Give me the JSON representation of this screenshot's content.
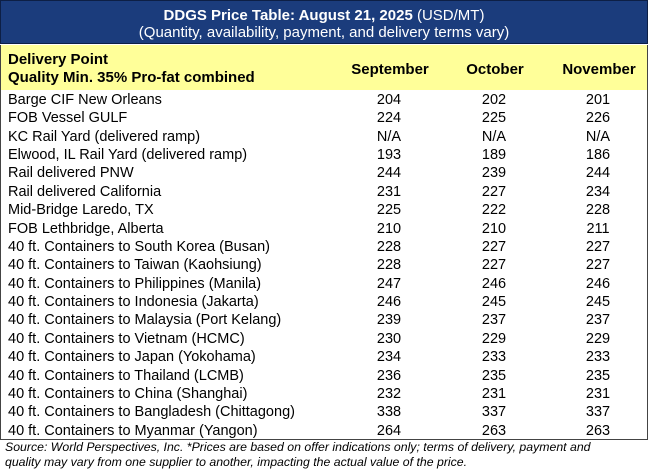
{
  "header": {
    "title": "DDGS Price Table: August 21, 2025",
    "unit": "(USD/MT)",
    "subtitle": "(Quantity, availability, payment, and delivery terms vary)"
  },
  "table": {
    "row_header": [
      "Delivery Point",
      "Quality Min. 35% Pro-fat combined"
    ],
    "columns": [
      "September",
      "October",
      "November"
    ],
    "rows": [
      [
        "Barge CIF New Orleans",
        204,
        202,
        201
      ],
      [
        "FOB Vessel GULF",
        224,
        225,
        226
      ],
      [
        "KC Rail Yard (delivered ramp)",
        "N/A",
        "N/A",
        "N/A"
      ],
      [
        "Elwood, IL Rail Yard (delivered ramp)",
        193,
        189,
        186
      ],
      [
        "Rail delivered PNW",
        244,
        239,
        244
      ],
      [
        "Rail delivered California",
        231,
        227,
        234
      ],
      [
        "Mid-Bridge Laredo, TX",
        225,
        222,
        228
      ],
      [
        "FOB Lethbridge, Alberta",
        210,
        210,
        211
      ],
      [
        "40 ft. Containers to South Korea (Busan)",
        228,
        227,
        227
      ],
      [
        "40 ft. Containers to Taiwan (Kaohsiung)",
        228,
        227,
        227
      ],
      [
        "40 ft. Containers to Philippines (Manila)",
        247,
        246,
        246
      ],
      [
        "40 ft. Containers to Indonesia (Jakarta)",
        246,
        245,
        245
      ],
      [
        "40 ft. Containers to Malaysia (Port Kelang)",
        239,
        237,
        237
      ],
      [
        "40 ft. Containers to Vietnam (HCMC)",
        230,
        229,
        229
      ],
      [
        "40 ft. Containers to Japan (Yokohama)",
        234,
        233,
        233
      ],
      [
        "40 ft. Containers to Thailand (LCMB)",
        236,
        235,
        235
      ],
      [
        "40 ft. Containers to China (Shanghai)",
        232,
        231,
        231
      ],
      [
        "40 ft. Containers to Bangladesh (Chittagong)",
        338,
        337,
        337
      ],
      [
        "40 ft. Containers to Myanmar (Yangon)",
        264,
        263,
        263
      ]
    ]
  },
  "footer": {
    "lines": [
      "Source: World Perspectives, Inc. *Prices are based on offer indications only; terms of delivery, payment and",
      "quality may vary from one supplier to another, impacting the actual value of the price."
    ]
  }
}
